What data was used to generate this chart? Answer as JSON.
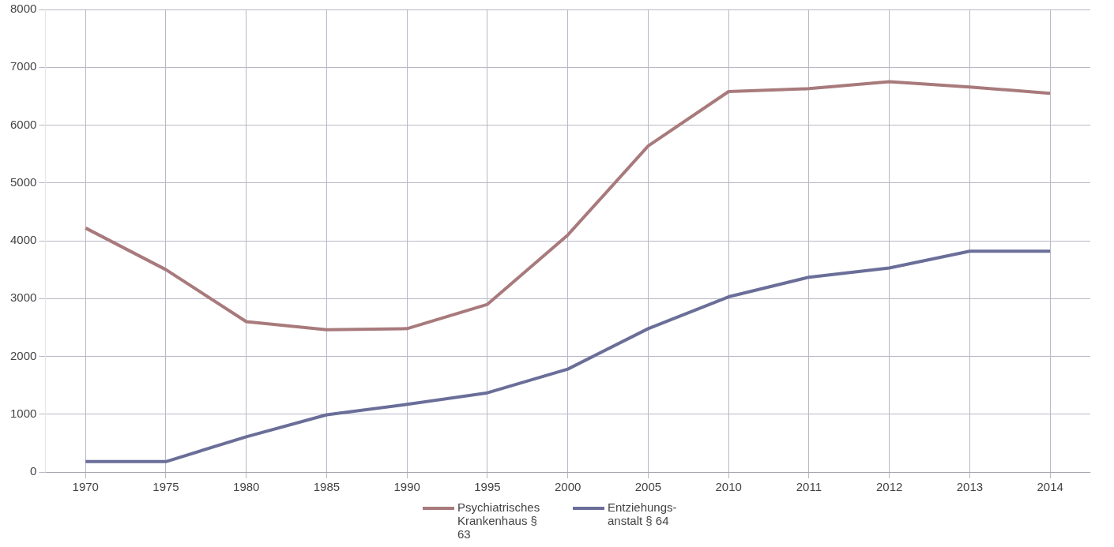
{
  "chart_data": {
    "type": "line",
    "categories": [
      "1970",
      "1975",
      "1980",
      "1985",
      "1990",
      "1995",
      "2000",
      "2005",
      "2010",
      "2011",
      "2012",
      "2013",
      "2014"
    ],
    "series": [
      {
        "name": "Psychiatrisches Krankenhaus § 63",
        "color": "#a87a7c",
        "values": [
          4220,
          3500,
          2600,
          2460,
          2480,
          2900,
          4100,
          5640,
          6580,
          6630,
          6750,
          6660,
          6550
        ]
      },
      {
        "name": "Entziehungs-anstalt § 64",
        "color": "#6a6e98",
        "values": [
          180,
          180,
          610,
          990,
          1170,
          1370,
          1780,
          2480,
          3030,
          3370,
          3530,
          3820,
          3820
        ]
      }
    ],
    "ylim": [
      0,
      8000
    ],
    "yticks": [
      0,
      1000,
      2000,
      3000,
      4000,
      5000,
      6000,
      7000,
      8000
    ],
    "grid": true,
    "legend": "bottom",
    "marker": "none",
    "line_style": "solid"
  }
}
